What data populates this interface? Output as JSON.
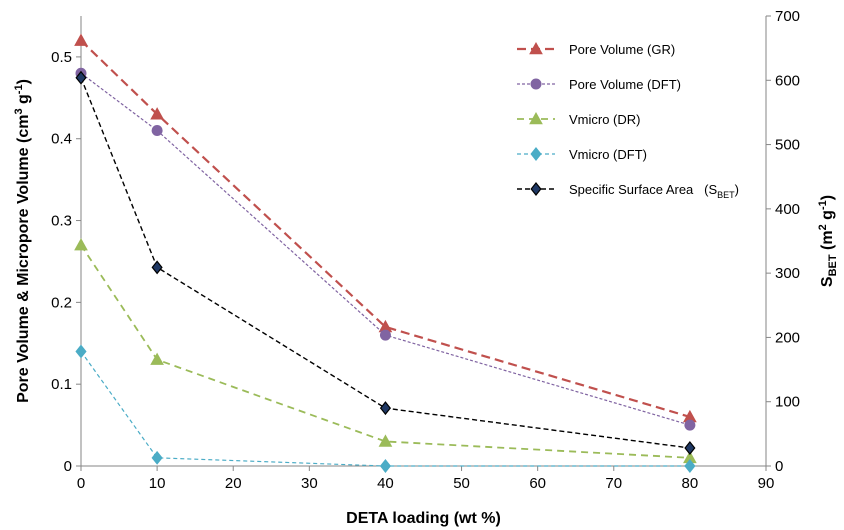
{
  "chart_data": {
    "type": "line",
    "x": [
      0,
      10,
      40,
      80
    ],
    "xlabel": "DETA loading (wt %)",
    "ylabel_left": {
      "base": "Pore Volume & Micropore Volume (cm",
      "sup1": "3",
      "mid": " g",
      "sup2": "-1",
      "end": ")"
    },
    "ylabel_right": {
      "base": "S",
      "sub": "BET",
      "mid": " (m",
      "sup1": "2",
      "mid2": " g",
      "sup2": "-1",
      "end": ")"
    },
    "xlim": [
      0,
      90
    ],
    "ylim_left": [
      0,
      0.55
    ],
    "ylim_right": [
      0,
      700
    ],
    "xticks": [
      0,
      10,
      20,
      30,
      40,
      50,
      60,
      70,
      80,
      90
    ],
    "yticks_left": [
      0,
      0.1,
      0.2,
      0.3,
      0.4,
      0.5
    ],
    "yticks_right": [
      0,
      100,
      200,
      300,
      400,
      500,
      600,
      700
    ],
    "legend_position": "top-right",
    "series": [
      {
        "name": "Pore Volume (GR)",
        "axis": "left",
        "values": [
          0.52,
          0.43,
          0.17,
          0.06
        ],
        "color": "#c0504d",
        "marker": "triangle",
        "dash": "9,5",
        "width": 2.2
      },
      {
        "name": "Pore Volume (DFT)",
        "axis": "left",
        "values": [
          0.48,
          0.41,
          0.16,
          0.05
        ],
        "color": "#8064a2",
        "marker": "circle",
        "dash": "3,2",
        "width": 1.2
      },
      {
        "name": "Vmicro (DR)",
        "axis": "left",
        "values": [
          0.27,
          0.13,
          0.03,
          0.01
        ],
        "color": "#9bbb59",
        "marker": "triangle",
        "dash": "7,5",
        "width": 1.8
      },
      {
        "name": "Vmicro (DFT)",
        "axis": "left",
        "values": [
          0.14,
          0.01,
          0.0,
          0.0
        ],
        "color": "#4bacc6",
        "marker": "diamond",
        "dash": "4,3",
        "width": 1.2
      },
      {
        "name": "Specific Surface Area",
        "name_suffix": "(S",
        "name_sub": "BET",
        "name_end": ")",
        "axis": "right",
        "values": [
          604,
          309,
          90,
          28
        ],
        "color": "#000000",
        "fill": "#1f3864",
        "marker": "diamond",
        "dash": "5,3",
        "width": 1.4
      }
    ]
  }
}
